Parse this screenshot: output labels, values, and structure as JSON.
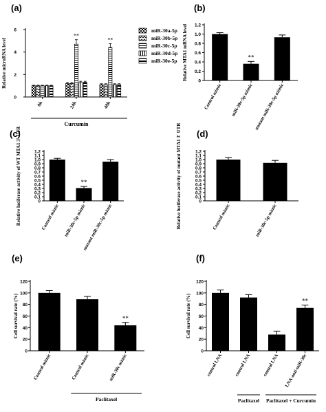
{
  "figure": {
    "background": "#ffffff",
    "ink": "#000000"
  },
  "chart_data": [
    {
      "panel": "(a)",
      "type": "bar",
      "ylabel": "Relative microRNA level",
      "ylim": [
        0,
        6
      ],
      "yticks": [
        0,
        2,
        4,
        6
      ],
      "categories": [
        "0h",
        "24h",
        "48h"
      ],
      "group_label": "Curcumin",
      "series": [
        {
          "name": "miR-30a-5p",
          "pattern": "check",
          "values": [
            1.0,
            1.2,
            1.1
          ],
          "errors": [
            0.05,
            0.1,
            0.08
          ]
        },
        {
          "name": "miR-30b-5p",
          "pattern": "zigzag",
          "values": [
            1.0,
            1.2,
            1.1
          ],
          "errors": [
            0.05,
            0.1,
            0.08
          ]
        },
        {
          "name": "miR-30c-5p",
          "pattern": "hstripe",
          "values": [
            1.0,
            4.7,
            4.4
          ],
          "errors": [
            0.05,
            0.4,
            0.35
          ]
        },
        {
          "name": "miR-30d-5p",
          "pattern": "vstripe",
          "values": [
            1.0,
            1.3,
            1.1
          ],
          "errors": [
            0.05,
            0.1,
            0.08
          ]
        },
        {
          "name": "miR-30e-5p",
          "pattern": "hbold",
          "values": [
            1.0,
            1.3,
            1.1
          ],
          "errors": [
            0.05,
            0.1,
            0.08
          ]
        }
      ],
      "annotations": [
        {
          "text": "**",
          "category": "24h",
          "series": "miR-30c-5p"
        },
        {
          "text": "**",
          "category": "48h",
          "series": "miR-30c-5p"
        }
      ],
      "legend": "right"
    },
    {
      "panel": "(b)",
      "type": "bar",
      "ylabel": "Relative MTA1 mRNA level",
      "ylim": [
        0,
        1.2
      ],
      "yticks": [
        0,
        0.2,
        0.4,
        0.6,
        0.8,
        1.0,
        1.2
      ],
      "ytick_labels": [
        "0",
        "0.2",
        "0.4",
        "0.6",
        "0.8",
        "1.0",
        "1.2"
      ],
      "categories": [
        "Control mimic",
        "miR-30c-5p mimic",
        "mutant miR-30c-5p mimic"
      ],
      "values": [
        1.0,
        0.36,
        0.93
      ],
      "errors": [
        0.03,
        0.05,
        0.05
      ],
      "annotations": [
        {
          "text": "**",
          "category": "miR-30c-5p mimic"
        }
      ]
    },
    {
      "panel": "(c)",
      "type": "bar",
      "ylabel": "Relative luciferase activity of WT MTA1 3' UTR",
      "ylim": [
        0,
        1.2
      ],
      "yticks": [
        0,
        0.1,
        0.2,
        0.3,
        0.4,
        0.5,
        0.6,
        0.7,
        0.8,
        0.9,
        1.0,
        1.1,
        1.2
      ],
      "ytick_labels": [
        "0",
        "0.1",
        "0.2",
        "0.3",
        "0.4",
        "0.5",
        "0.6",
        "0.7",
        "0.8",
        "0.9",
        "1.0",
        "1.1",
        "1.2"
      ],
      "categories": [
        "Control mimic",
        "miR-30c-5p mimic",
        "mutant miR-30c-5p mimic"
      ],
      "values": [
        1.0,
        0.31,
        0.95
      ],
      "errors": [
        0.03,
        0.04,
        0.05
      ],
      "annotations": [
        {
          "text": "**",
          "category": "miR-30c-5p mimic"
        }
      ]
    },
    {
      "panel": "(d)",
      "type": "bar",
      "ylabel": "Relative luciferase activity of mutant MTA1 3' UTR",
      "ylim": [
        0,
        1.2
      ],
      "yticks": [
        0,
        0.1,
        0.2,
        0.3,
        0.4,
        0.5,
        0.6,
        0.7,
        0.8,
        0.9,
        1.0,
        1.1,
        1.2
      ],
      "ytick_labels": [
        "0",
        "0.1",
        "0.2",
        "0.3",
        "0.4",
        "0.5",
        "0.6",
        "0.7",
        "0.8",
        "0.9",
        "1.0",
        "1.1",
        "1.2"
      ],
      "categories": [
        "Control mimic",
        "miR-30c-5p mimic"
      ],
      "values": [
        1.0,
        0.92
      ],
      "errors": [
        0.05,
        0.06
      ]
    },
    {
      "panel": "(e)",
      "type": "bar",
      "ylabel": "Cell survival rate (%)",
      "ylim": [
        0,
        120
      ],
      "yticks": [
        0,
        20,
        40,
        60,
        80,
        100,
        120
      ],
      "categories": [
        "Control mimic",
        "Control mimic",
        "miR-30c mimic"
      ],
      "values": [
        100,
        89,
        44
      ],
      "errors": [
        4,
        5,
        5
      ],
      "annotations": [
        {
          "text": "**",
          "index": 2
        }
      ],
      "groups": [
        {
          "label": "Paclitaxel",
          "from": 1,
          "to": 2
        }
      ]
    },
    {
      "panel": "(f)",
      "type": "bar",
      "ylabel": "Cell survival rate (%)",
      "ylim": [
        0,
        120
      ],
      "yticks": [
        0,
        20,
        40,
        60,
        80,
        100,
        120
      ],
      "categories": [
        "control LNA",
        "control LNA",
        "control LNA",
        "LNA-anti-miR-30c"
      ],
      "values": [
        100,
        92,
        28,
        74
      ],
      "errors": [
        5,
        5,
        6,
        5
      ],
      "annotations": [
        {
          "text": "**",
          "index": 3
        }
      ],
      "groups": [
        {
          "label": "Paclitaxel",
          "from": 1,
          "to": 1
        },
        {
          "label": "Paclitaxel + Curcumin",
          "from": 2,
          "to": 3
        }
      ]
    }
  ]
}
